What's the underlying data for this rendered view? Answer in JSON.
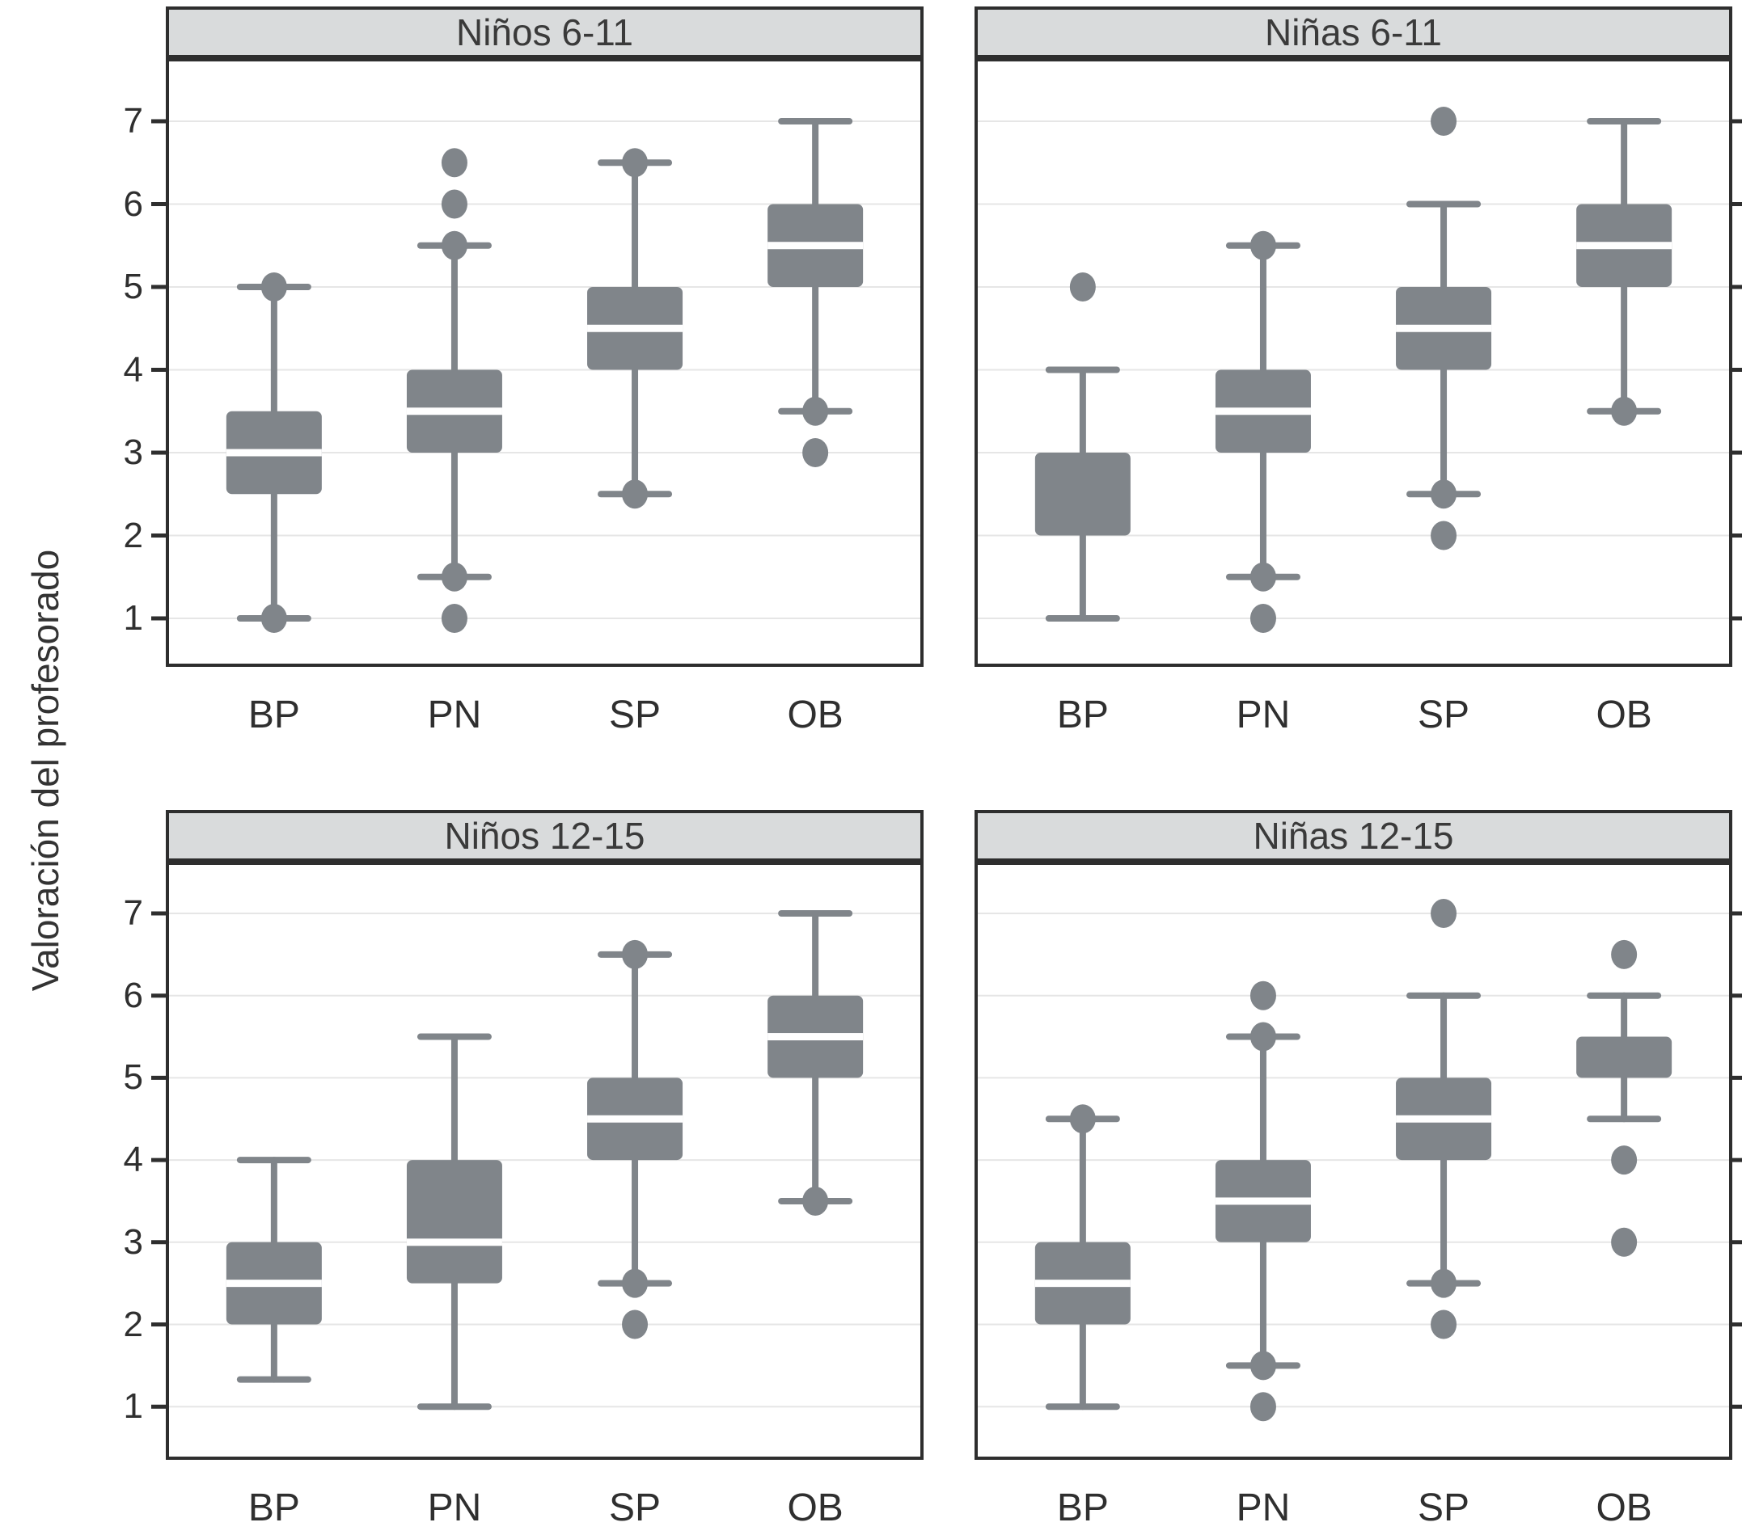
{
  "figure_title": "",
  "colors": {
    "box_gray": "#80858a",
    "whisker_gray": "#80858a",
    "outlier_gray": "#80858a",
    "median_white": "#ffffff",
    "gridline": "#e6e6e6",
    "panel_border": "#2e2e2e",
    "strip_background": "#d9dbdc",
    "text": "#2f2f2f",
    "background": "#ffffff"
  },
  "chart_data": {
    "type": "boxplot",
    "layout": "2x2-facets",
    "title": "",
    "xlabel": "",
    "ylabel": "Valoración del profesorado",
    "categories": [
      "BP",
      "PN",
      "SP",
      "OB"
    ],
    "y_ticks": [
      1,
      2,
      3,
      4,
      5,
      6,
      7
    ],
    "ylim": [
      0.4,
      7.75
    ],
    "grid": "horizontal-only",
    "legend_position": "none",
    "panels": [
      {
        "title": "Niños 6-11",
        "boxes": [
          {
            "category": "BP",
            "whislo": 1,
            "q1": 2.5,
            "med": 3,
            "q3": 3.5,
            "whishi": 5,
            "outliers": [
              1,
              5
            ]
          },
          {
            "category": "PN",
            "whislo": 1.5,
            "q1": 3,
            "med": 3.5,
            "q3": 4,
            "whishi": 5.5,
            "outliers": [
              1,
              1.5,
              5.5,
              6,
              6.5
            ]
          },
          {
            "category": "SP",
            "whislo": 2.5,
            "q1": 4,
            "med": 4.5,
            "q3": 5,
            "whishi": 6.5,
            "outliers": [
              2.5,
              6.5
            ]
          },
          {
            "category": "OB",
            "whislo": 3.5,
            "q1": 5,
            "med": 5.5,
            "q3": 6,
            "whishi": 7,
            "outliers": [
              3,
              3.5
            ]
          }
        ]
      },
      {
        "title": "Niñas 6-11",
        "boxes": [
          {
            "category": "BP",
            "whislo": 1,
            "q1": 2,
            "med": 3,
            "q3": 3,
            "whishi": 4,
            "outliers": [
              5
            ]
          },
          {
            "category": "PN",
            "whislo": 1.5,
            "q1": 3,
            "med": 3.5,
            "q3": 4,
            "whishi": 5.5,
            "outliers": [
              1,
              1.5,
              5.5
            ]
          },
          {
            "category": "SP",
            "whislo": 2.5,
            "q1": 4,
            "med": 4.5,
            "q3": 5,
            "whishi": 6,
            "outliers": [
              2,
              2.5,
              7
            ]
          },
          {
            "category": "OB",
            "whislo": 3.5,
            "q1": 5,
            "med": 5.5,
            "q3": 6,
            "whishi": 7,
            "outliers": [
              3.5
            ]
          }
        ]
      },
      {
        "title": "Niños 12-15",
        "boxes": [
          {
            "category": "BP",
            "whislo": 1.33,
            "q1": 2,
            "med": 2.5,
            "q3": 3,
            "whishi": 4,
            "outliers": []
          },
          {
            "category": "PN",
            "whislo": 1,
            "q1": 2.5,
            "med": 3,
            "q3": 4,
            "whishi": 5.5,
            "outliers": []
          },
          {
            "category": "SP",
            "whislo": 2.5,
            "q1": 4,
            "med": 4.5,
            "q3": 5,
            "whishi": 6.5,
            "outliers": [
              2,
              2.5,
              6.5
            ]
          },
          {
            "category": "OB",
            "whislo": 3.5,
            "q1": 5,
            "med": 5.5,
            "q3": 6,
            "whishi": 7,
            "outliers": [
              3.5
            ]
          }
        ]
      },
      {
        "title": "Niñas 12-15",
        "boxes": [
          {
            "category": "BP",
            "whislo": 1,
            "q1": 2,
            "med": 2.5,
            "q3": 3,
            "whishi": 4.5,
            "outliers": [
              4.5
            ]
          },
          {
            "category": "PN",
            "whislo": 1.5,
            "q1": 3,
            "med": 3.5,
            "q3": 4,
            "whishi": 5.5,
            "outliers": [
              1,
              1.5,
              5.5,
              6
            ]
          },
          {
            "category": "SP",
            "whislo": 2.5,
            "q1": 4,
            "med": 4.5,
            "q3": 5,
            "whishi": 6,
            "outliers": [
              2,
              2.5,
              7
            ]
          },
          {
            "category": "OB",
            "whislo": 4.5,
            "q1": 5,
            "med": 5.5,
            "q3": 5.5,
            "whishi": 6,
            "outliers": [
              3,
              4,
              6.5
            ]
          }
        ]
      }
    ]
  }
}
